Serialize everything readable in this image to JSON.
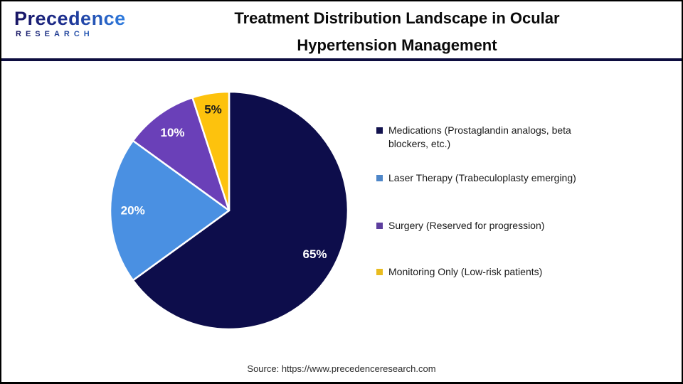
{
  "header": {
    "logo": {
      "name": "Precedence",
      "subtitle": "RESEARCH"
    },
    "title_line1": "Treatment Distribution Landscape in Ocular",
    "title_line2": "Hypertension Management"
  },
  "chart_data": {
    "type": "pie",
    "title": "Treatment Distribution Landscape in Ocular Hypertension Management",
    "start_angle_deg": 0,
    "direction": "clockwise",
    "legend_position": "right",
    "slices": [
      {
        "label": "Medications (Prostaglandin analogs, beta blockers, etc.)",
        "value": 65,
        "display": "65%",
        "color": "#0D0D4B",
        "label_color": "#FFFFFF"
      },
      {
        "label": "Laser Therapy (Trabeculoplasty emerging)",
        "value": 20,
        "display": "20%",
        "color": "#4A90E2",
        "label_color": "#FFFFFF"
      },
      {
        "label": "Surgery (Reserved for progression)",
        "value": 10,
        "display": "10%",
        "color": "#6A40B8",
        "label_color": "#FFFFFF"
      },
      {
        "label": "Monitoring Only (Low-risk patients)",
        "value": 5,
        "display": "5%",
        "color": "#FDC20D",
        "label_color": "#1A1A1A"
      }
    ]
  },
  "legend": {
    "items": [
      {
        "label": "Medications (Prostaglandin analogs, beta blockers, etc.)",
        "marker_color": "#12124E"
      },
      {
        "label": "Laser Therapy (Trabeculoplasty emerging)",
        "marker_color": "#4E86C8"
      },
      {
        "label": "Surgery (Reserved for progression)",
        "marker_color": "#5D3E9E"
      },
      {
        "label": "Monitoring Only (Low-risk patients)",
        "marker_color": "#E9BC1F"
      }
    ]
  },
  "footer": {
    "source": "Source: https://www.precedenceresearch.com"
  },
  "colors": {
    "header_rule": "#0D0D3F",
    "border": "#000000",
    "background": "#FFFFFF"
  }
}
